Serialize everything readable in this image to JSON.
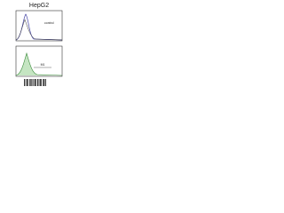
{
  "header": {
    "title": "HepG2"
  },
  "panels": [
    {
      "label": "control"
    },
    {
      "label": "M1"
    }
  ]
}
